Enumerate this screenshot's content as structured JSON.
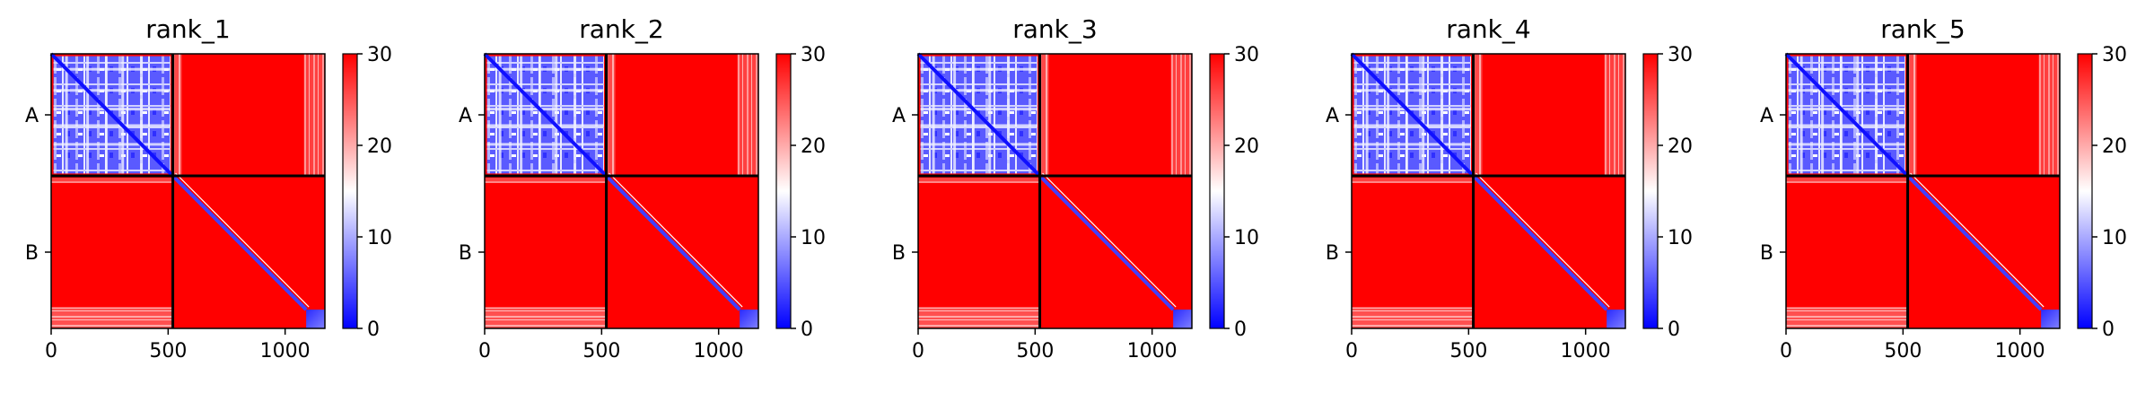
{
  "chart_data": {
    "type": "heatmap",
    "colormap": {
      "name": "bwr",
      "low": "#0000ff",
      "mid": "#ffffff",
      "high": "#ff0000"
    },
    "value_range": [
      0,
      30
    ],
    "colorbar_ticks": [
      0,
      10,
      20,
      30
    ],
    "x_ticks": [
      0,
      500,
      1000
    ],
    "axis_extent": [
      0,
      1170
    ],
    "chain_boundary": 520,
    "chain_labels": [
      "A",
      "B"
    ],
    "boundary_line_color": "#000000",
    "panels": [
      {
        "title": "rank_1"
      },
      {
        "title": "rank_2"
      },
      {
        "title": "rank_3"
      },
      {
        "title": "rank_4"
      },
      {
        "title": "rank_5"
      }
    ]
  }
}
